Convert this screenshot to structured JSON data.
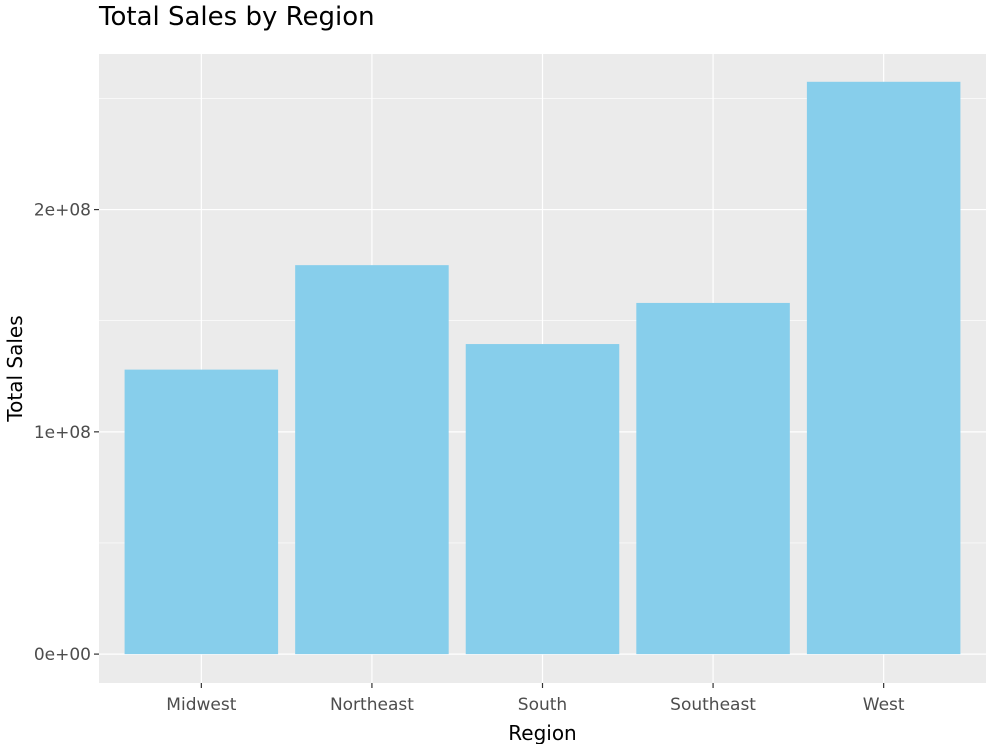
{
  "chart_data": {
    "type": "bar",
    "title": "Total Sales by Region",
    "xlabel": "Region",
    "ylabel": "Total Sales",
    "categories": [
      "Midwest",
      "Northeast",
      "South",
      "Southeast",
      "West"
    ],
    "values": [
      128000000,
      175000000,
      139500000,
      158000000,
      257500000
    ],
    "ylim": [
      -13000000,
      270000000
    ],
    "yticks": [
      0,
      100000000,
      200000000
    ],
    "ytick_labels": [
      "0e+00",
      "1e+08",
      "2e+08"
    ],
    "bar_color": "#87CEEB",
    "panel_background": "#EBEBEB",
    "grid_color": "#FFFFFF",
    "grid": true,
    "legend": "none"
  }
}
